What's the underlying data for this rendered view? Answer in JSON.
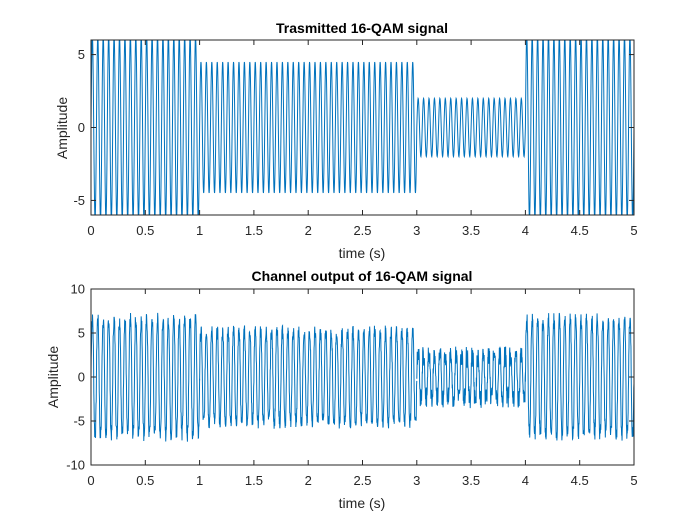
{
  "chart_data": [
    {
      "type": "line",
      "title": "Trasmitted 16-QAM signal",
      "xlabel": "time (s)",
      "ylabel": "Amplitude",
      "xlim": [
        0,
        5
      ],
      "ylim": [
        -6,
        6
      ],
      "xticks": [
        "0",
        "0.5",
        "1",
        "1.5",
        "2",
        "2.5",
        "3",
        "3.5",
        "4",
        "4.5",
        "5"
      ],
      "yticks": [
        "-5",
        "0",
        "5"
      ],
      "grid": false,
      "line_color": "#0072bd",
      "series": [
        {
          "segments": [
            {
              "t_start": 0,
              "t_end": 1,
              "amplitude": 6.3,
              "noise": 0
            },
            {
              "t_start": 1,
              "t_end": 3,
              "amplitude": 4.5,
              "noise": 0
            },
            {
              "t_start": 3,
              "t_end": 4,
              "amplitude": 2.0,
              "noise": 0
            },
            {
              "t_start": 4,
              "t_end": 5,
              "amplitude": 6.3,
              "noise": 0
            }
          ]
        }
      ]
    },
    {
      "type": "line",
      "title": "Channel output of 16-QAM signal",
      "xlabel": "time (s)",
      "ylabel": "Amplitude",
      "xlim": [
        0,
        5
      ],
      "ylim": [
        -10,
        10
      ],
      "xticks": [
        "0",
        "0.5",
        "1",
        "1.5",
        "2",
        "2.5",
        "3",
        "3.5",
        "4",
        "4.5",
        "5"
      ],
      "yticks": [
        "-10",
        "-5",
        "0",
        "5",
        "10"
      ],
      "grid": false,
      "line_color": "#0072bd",
      "series": [
        {
          "segments": [
            {
              "t_start": 0,
              "t_end": 1,
              "amplitude": 7.0,
              "noise": 0.9
            },
            {
              "t_start": 1,
              "t_end": 3,
              "amplitude": 5.6,
              "noise": 0.8
            },
            {
              "t_start": 3,
              "t_end": 4,
              "amplitude": 2.8,
              "noise": 1.1
            },
            {
              "t_start": 4,
              "t_end": 5,
              "amplitude": 7.0,
              "noise": 0.9
            }
          ]
        }
      ]
    }
  ]
}
